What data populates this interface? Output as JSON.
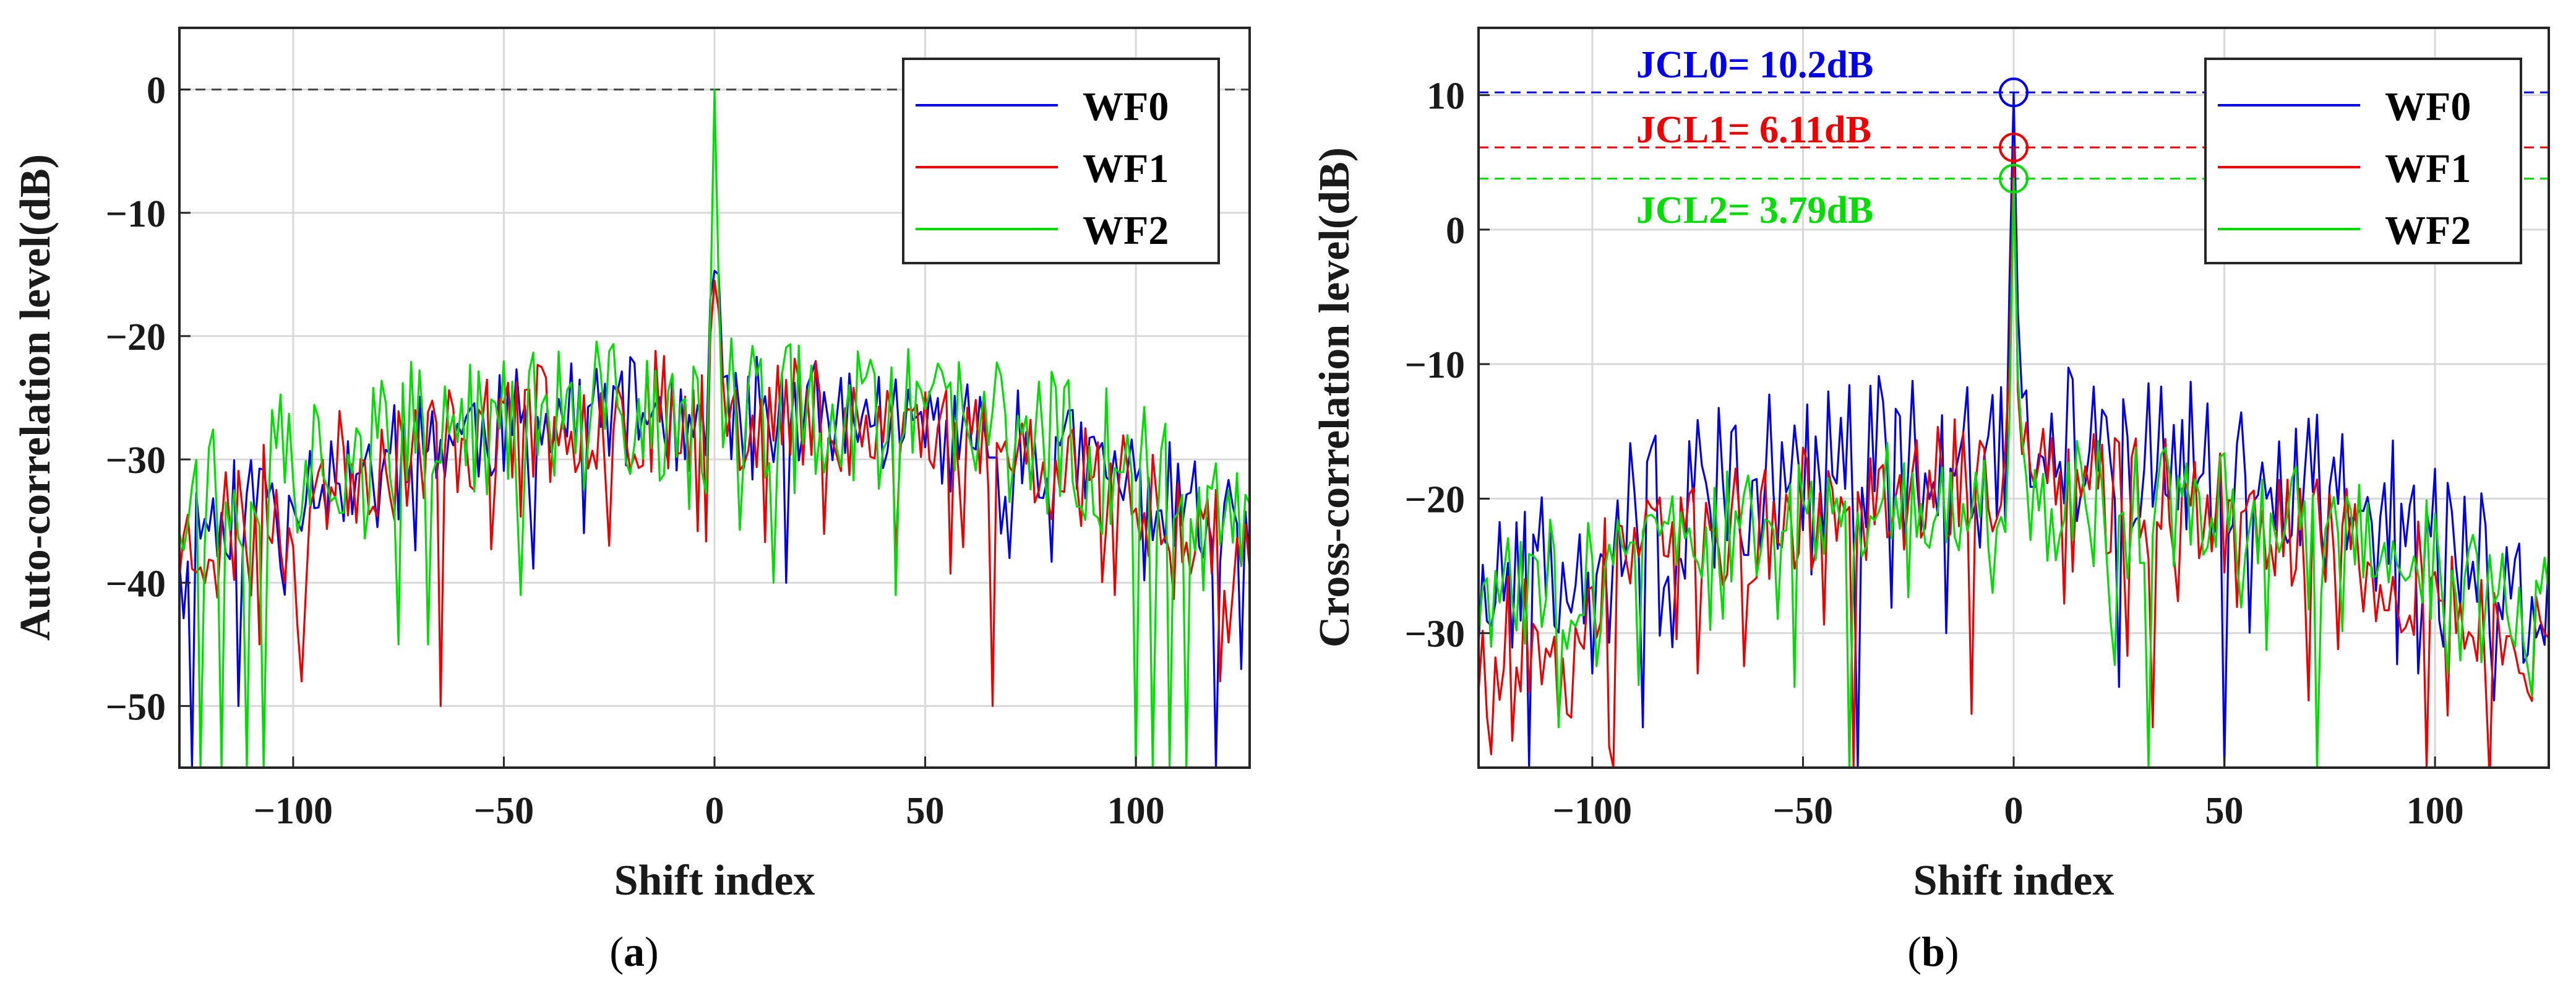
{
  "chart_data": [
    {
      "type": "line",
      "panel_label": "a",
      "title": "",
      "xlabel": "Shift index",
      "ylabel": "Auto-correlation level(dB)",
      "xlim": [
        -127,
        127
      ],
      "ylim": [
        -55,
        5
      ],
      "xticks": [
        -100,
        -50,
        0,
        50,
        100
      ],
      "yticks": [
        0,
        -10,
        -20,
        -30,
        -40,
        -50
      ],
      "xtick_labels": [
        "−100",
        "−50",
        "0",
        "50",
        "100"
      ],
      "ytick_labels": [
        "0",
        "−10",
        "−20",
        "−30",
        "−40",
        "−50"
      ],
      "grid": true,
      "reference_line": {
        "y": 0,
        "style": "dashed",
        "color": "#444444"
      },
      "legend": {
        "placement": "top-right",
        "entries": [
          "WF0",
          "WF1",
          "WF2"
        ]
      },
      "series": [
        {
          "name": "WF0",
          "color": "#0000ee",
          "peak": {
            "x": 0,
            "y": -14.7
          },
          "neighbors": [
            -17,
            -15
          ],
          "base": -26,
          "ripple": 4.5,
          "edge": -36,
          "dips": [
            [
              -124,
              -55
            ],
            [
              -113,
              -50
            ],
            [
              -88,
              -35
            ],
            [
              17,
              -40
            ],
            [
              70,
              -38
            ],
            [
              119,
              -55
            ],
            [
              125,
              -47
            ]
          ],
          "seed": 11
        },
        {
          "name": "WF1",
          "color": "#ee0000",
          "peak": {
            "x": 0,
            "y": -15.5
          },
          "neighbors": [
            -20,
            -18
          ],
          "base": -26,
          "ripple": 5,
          "edge": -37,
          "dips": [
            [
              -108,
              -45
            ],
            [
              -98,
              -48
            ],
            [
              -65,
              -50
            ],
            [
              -25,
              -37
            ],
            [
              43,
              -38
            ],
            [
              66,
              -50
            ],
            [
              95,
              -41
            ],
            [
              120,
              -48
            ]
          ],
          "seed": 23
        },
        {
          "name": "WF2",
          "color": "#00dd00",
          "peak": {
            "x": 0,
            "y": 0
          },
          "neighbors": [
            -18,
            -16
          ],
          "base": -26,
          "ripple": 6,
          "edge": -33,
          "dips": [
            [
              -122,
              -55
            ],
            [
              -117,
              -55
            ],
            [
              -111,
              -55
            ],
            [
              -107,
              -55
            ],
            [
              -75,
              -45
            ],
            [
              -68,
              -45
            ],
            [
              -46,
              -41
            ],
            [
              14,
              -40
            ],
            [
              43,
              -41
            ],
            [
              100,
              -55
            ],
            [
              104,
              -55
            ],
            [
              108,
              -55
            ],
            [
              112,
              -55
            ]
          ],
          "seed": 37
        }
      ]
    },
    {
      "type": "line",
      "panel_label": "b",
      "title": "",
      "xlabel": "Shift index",
      "ylabel": "Cross-correlation level(dB)",
      "xlim": [
        -127,
        127
      ],
      "ylim": [
        -40,
        15
      ],
      "xticks": [
        -100,
        -50,
        0,
        50,
        100
      ],
      "yticks": [
        10,
        0,
        -10,
        -20,
        -30
      ],
      "xtick_labels": [
        "−100",
        "−50",
        "0",
        "50",
        "100"
      ],
      "ytick_labels": [
        "10",
        "0",
        "−10",
        "−20",
        "−30"
      ],
      "grid": true,
      "legend": {
        "placement": "top-right",
        "entries": [
          "WF0",
          "WF1",
          "WF2"
        ]
      },
      "annotations": [
        {
          "text": "JCL0= 10.2dB",
          "value": 10.2,
          "color": "#0000ee"
        },
        {
          "text": "JCL1= 6.11dB",
          "value": 6.11,
          "color": "#ee0000"
        },
        {
          "text": "JCL2= 3.79dB",
          "value": 3.79,
          "color": "#00dd00"
        }
      ],
      "series": [
        {
          "name": "WF0",
          "color": "#0000ee",
          "peak": {
            "x": 0,
            "y": 10.2
          },
          "neighbors": [
            -4,
            -6
          ],
          "base": -16,
          "ripple": 6,
          "edge": -28,
          "dips": [
            [
              -115,
              -40
            ],
            [
              -100,
              -33
            ],
            [
              -88,
              -37
            ],
            [
              -37,
              -40
            ],
            [
              -16,
              -30
            ],
            [
              25,
              -34
            ],
            [
              50,
              -40
            ],
            [
              96,
              -33
            ],
            [
              114,
              -35
            ]
          ],
          "seed": 51
        },
        {
          "name": "WF1",
          "color": "#ee0000",
          "peak": {
            "x": 0,
            "y": 6.11
          },
          "neighbors": [
            -10,
            -12
          ],
          "base": -19,
          "ripple": 5,
          "edge": -32,
          "dips": [
            [
              -124,
              -39
            ],
            [
              -106,
              -36
            ],
            [
              -95,
              -40
            ],
            [
              -75,
              -33
            ],
            [
              -38,
              -40
            ],
            [
              -10,
              -36
            ],
            [
              33,
              -37
            ],
            [
              70,
              -35
            ],
            [
              98,
              -40
            ]
          ],
          "seed": 67
        },
        {
          "name": "WF2",
          "color": "#00dd00",
          "peak": {
            "x": 0,
            "y": 3.79
          },
          "neighbors": [
            -14,
            -11
          ],
          "base": -20,
          "ripple": 4.5,
          "edge": -28,
          "dips": [
            [
              -108,
              -37
            ],
            [
              -52,
              -34
            ],
            [
              -39,
              -40
            ],
            [
              32,
              -40
            ],
            [
              72,
              -40
            ],
            [
              103,
              -33
            ],
            [
              119,
              -31
            ]
          ],
          "seed": 83
        }
      ]
    }
  ]
}
